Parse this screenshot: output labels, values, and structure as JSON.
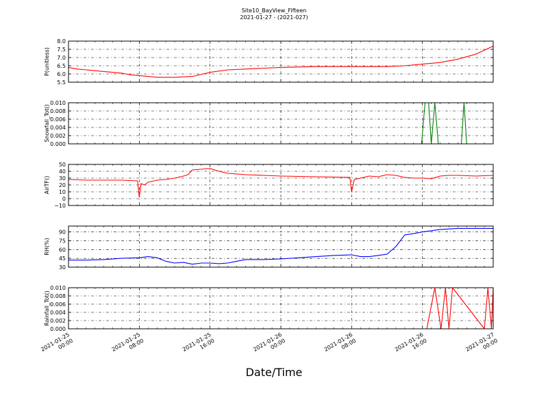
{
  "title": "Site10_BayView_Fifteen",
  "subtitle": "2021-01-27 - (2021-027)",
  "xlabel": "Date/Time",
  "chart_data": [
    {
      "type": "line",
      "ylabel": "P(unitless)",
      "ylim": [
        5.5,
        8.0
      ],
      "yticks": [
        "5.5",
        "6.0",
        "6.5",
        "7.0",
        "7.5",
        "8.0"
      ],
      "ytick_values": [
        5.5,
        6.0,
        6.5,
        7.0,
        7.5,
        8.0
      ],
      "color": "#ff0000",
      "grid": true,
      "series": [
        {
          "x": [
            0,
            1,
            2,
            3,
            4,
            5,
            6,
            6.5,
            7,
            8,
            9,
            10,
            12,
            14,
            16,
            18,
            20,
            24,
            28,
            32,
            34,
            36,
            38,
            40,
            42,
            44,
            46,
            48
          ],
          "values": [
            6.4,
            6.3,
            6.25,
            6.2,
            6.15,
            6.1,
            6.05,
            6.0,
            5.95,
            5.9,
            5.85,
            5.8,
            5.8,
            5.85,
            6.1,
            6.25,
            6.3,
            6.4,
            6.45,
            6.45,
            6.45,
            6.45,
            6.5,
            6.6,
            6.7,
            6.9,
            7.2,
            7.7
          ]
        }
      ]
    },
    {
      "type": "line",
      "ylabel": "Snowfall_Tot()",
      "ylim": [
        0.0,
        0.01
      ],
      "yticks": [
        "0.000",
        "0.002",
        "0.004",
        "0.006",
        "0.008",
        "0.010"
      ],
      "ytick_values": [
        0,
        0.002,
        0.004,
        0.006,
        0.008,
        0.01
      ],
      "color": "#007f00",
      "grid": true,
      "series": [
        {
          "x": [
            0,
            39.9,
            40.3,
            40.7,
            41.0,
            41.4,
            41.8,
            44.4,
            44.7,
            45.0,
            48
          ],
          "values": [
            0,
            0,
            0.01,
            0.01,
            0,
            0.01,
            0,
            0,
            0.01,
            0,
            0
          ]
        }
      ]
    },
    {
      "type": "line",
      "ylabel": "AirTF()",
      "ylim": [
        -10,
        50
      ],
      "yticks": [
        "−10",
        "0",
        "10",
        "20",
        "30",
        "40",
        "50"
      ],
      "ytick_values": [
        -10,
        0,
        10,
        20,
        30,
        40,
        50
      ],
      "color": "#ff0000",
      "grid": true,
      "series": [
        {
          "x": [
            0,
            2,
            4,
            6,
            7.8,
            8.0,
            8.2,
            8.6,
            9,
            10,
            11,
            12,
            13,
            13.5,
            14,
            15,
            16,
            16.5,
            17,
            18,
            20,
            24,
            28,
            31.8,
            32,
            32.3,
            33,
            34,
            35,
            36,
            37,
            38,
            39,
            40,
            41,
            42,
            43,
            44,
            46,
            48
          ],
          "values": [
            28,
            27,
            27,
            27,
            26,
            2,
            22,
            20,
            24,
            27,
            28,
            30,
            33,
            35,
            42,
            43,
            44,
            42,
            40,
            37,
            35,
            33,
            32,
            31,
            10,
            28,
            30,
            33,
            32,
            35,
            34,
            31,
            30,
            30,
            29,
            33,
            34,
            34,
            33,
            34
          ]
        }
      ]
    },
    {
      "type": "line",
      "ylabel": "RH(%)",
      "ylim": [
        30,
        100
      ],
      "yticks": [
        "30",
        "45",
        "60",
        "75",
        "90"
      ],
      "ytick_values": [
        30,
        45,
        60,
        75,
        90
      ],
      "color": "#0000ff",
      "grid": true,
      "series": [
        {
          "x": [
            0,
            2,
            4,
            6,
            8,
            9,
            10,
            11,
            12,
            13,
            14,
            15,
            16,
            17,
            18,
            19,
            20,
            22,
            24,
            26,
            28,
            30,
            32,
            33,
            34,
            35,
            36,
            37,
            38,
            39,
            40,
            42,
            44,
            46,
            48
          ],
          "values": [
            42,
            42,
            43,
            45,
            46,
            48,
            46,
            40,
            37,
            38,
            35,
            37,
            37,
            36,
            37,
            40,
            43,
            43,
            44,
            46,
            48,
            50,
            51,
            48,
            48,
            50,
            52,
            65,
            85,
            87,
            90,
            94,
            96,
            96,
            96
          ]
        }
      ]
    },
    {
      "type": "line",
      "ylabel": "Rainfall_Tot()",
      "ylim": [
        0.0,
        0.01
      ],
      "yticks": [
        "0.000",
        "0.002",
        "0.004",
        "0.006",
        "0.008",
        "0.010"
      ],
      "ytick_values": [
        0,
        0.002,
        0.004,
        0.006,
        0.008,
        0.01
      ],
      "color": "#ff0000",
      "grid": true,
      "series": [
        {
          "x": [
            0,
            40.5,
            41.4,
            42.1,
            42.6,
            43.0,
            43.4,
            47.0,
            47.4,
            47.8,
            48
          ],
          "values": [
            0,
            0,
            0.01,
            0,
            0.01,
            0,
            0.01,
            0,
            0.01,
            0,
            0.01
          ]
        }
      ]
    }
  ],
  "x_axis": {
    "range_hours": [
      0,
      48
    ],
    "ticks": [
      {
        "hour": 0,
        "line1": "2021-01-25",
        "line2": "00:00"
      },
      {
        "hour": 8,
        "line1": "2021-01-25",
        "line2": "08:00"
      },
      {
        "hour": 16,
        "line1": "2021-01-25",
        "line2": "16:00"
      },
      {
        "hour": 24,
        "line1": "2021-01-26",
        "line2": "00:00"
      },
      {
        "hour": 32,
        "line1": "2021-01-26",
        "line2": "08:00"
      },
      {
        "hour": 40,
        "line1": "2021-01-26",
        "line2": "16:00"
      },
      {
        "hour": 48,
        "line1": "2021-01-27",
        "line2": "00:00"
      }
    ]
  }
}
